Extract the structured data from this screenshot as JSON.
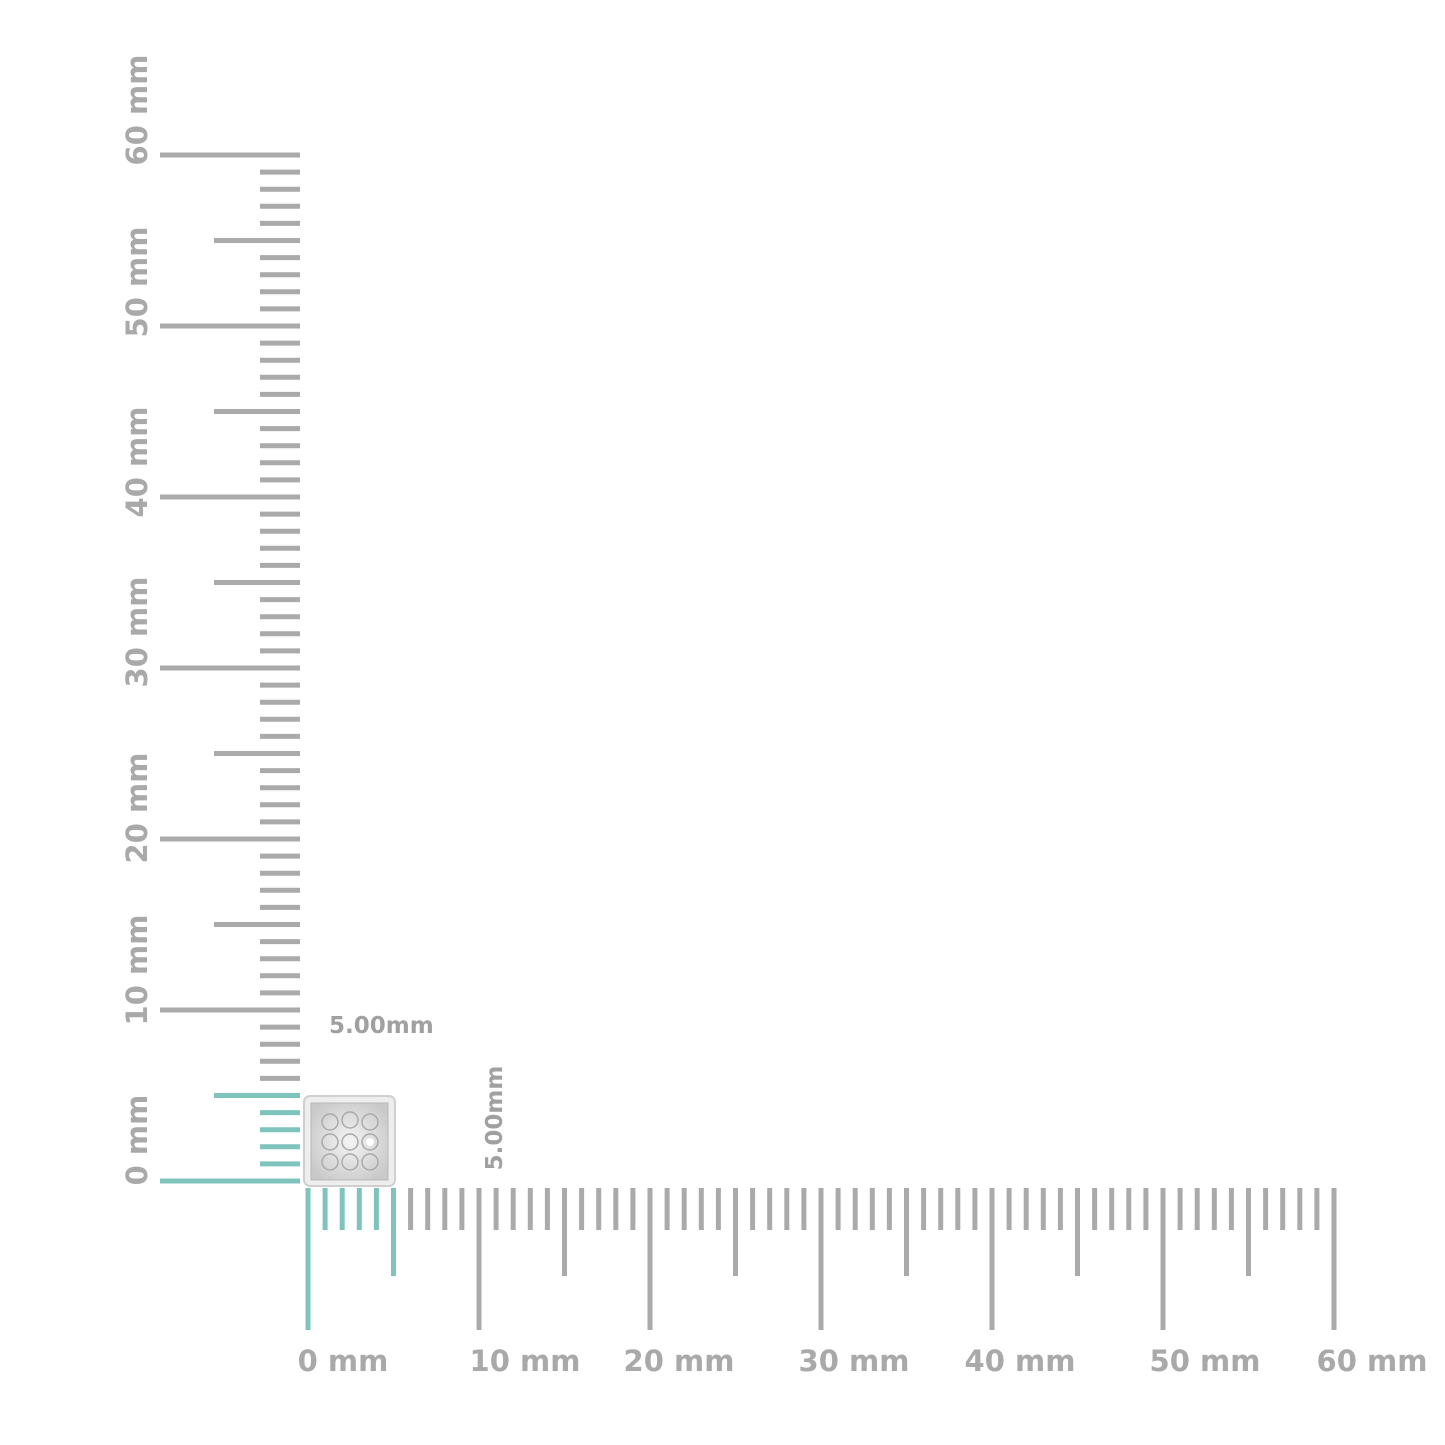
{
  "rulers": {
    "unit": "mm",
    "range_mm": [
      0,
      60
    ],
    "highlight_mm": 5,
    "colors": {
      "tick": "#aaaaaa",
      "highlight": "#7fc4bc",
      "label": "#a9a9a9"
    },
    "horizontal_labels": [
      "0 mm",
      "10 mm",
      "20 mm",
      "30 mm",
      "40 mm",
      "50 mm",
      "60 mm"
    ],
    "vertical_labels": [
      "0 mm",
      "10 mm",
      "20 mm",
      "30 mm",
      "40 mm",
      "50 mm",
      "60 mm"
    ]
  },
  "dimensions": {
    "width_label": "5.00mm",
    "height_label": "5.00mm"
  },
  "product": {
    "icon": "earring-image"
  }
}
